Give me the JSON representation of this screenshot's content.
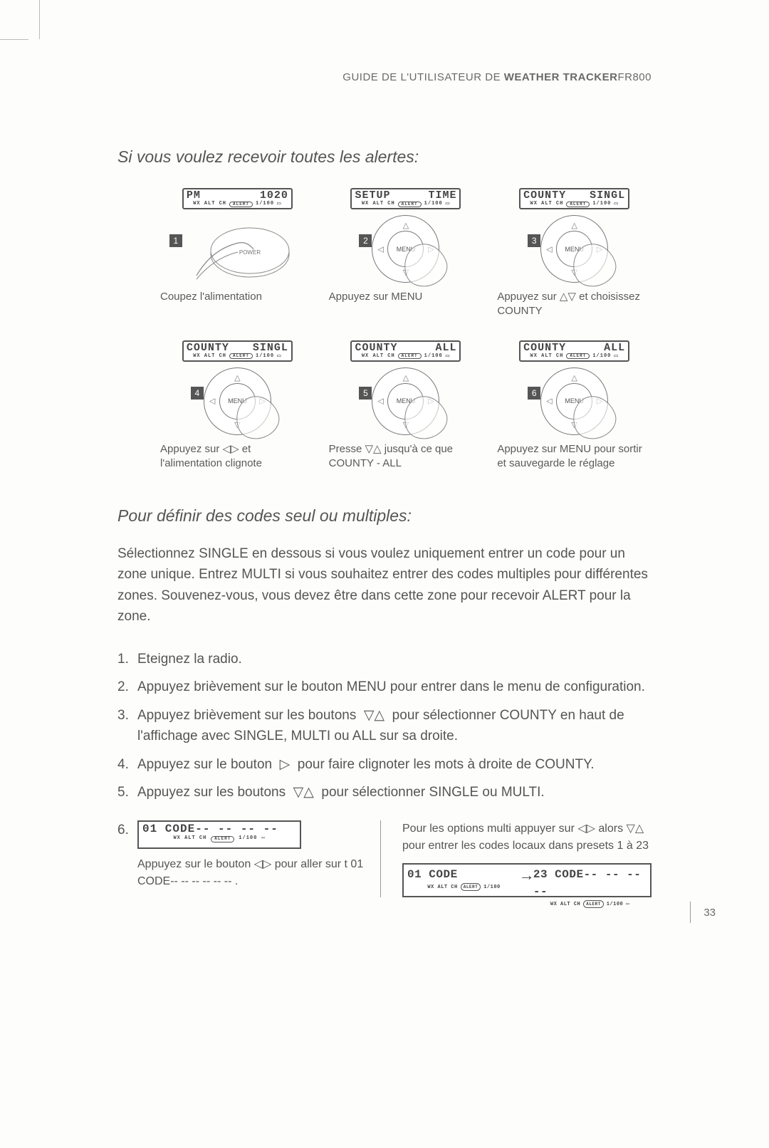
{
  "runhead": {
    "prefix": "GUIDE DE L'UTILISATEUR DE ",
    "bold": "WEATHER TRACKER",
    "suffix": "FR800"
  },
  "page_number": "33",
  "section1": {
    "title": "Si vous voulez recevoir toutes les alertes:",
    "steps": [
      {
        "num": "1",
        "lcd_left": "PM",
        "lcd_right": "1020",
        "caption": "Coupez l'alimentation",
        "dial_label": "POWER",
        "show_power_hand": true
      },
      {
        "num": "2",
        "lcd_left": "SETUP",
        "lcd_right": "TIME",
        "caption": "Appuyez sur MENU",
        "dial_label": "MENU",
        "show_hand": true
      },
      {
        "num": "3",
        "lcd_left": "COUNTY",
        "lcd_right": "SINGL",
        "caption_html": "Appuyez sur △▽ et choisissez COUNTY",
        "dial_label": "MENU",
        "show_hand": true
      },
      {
        "num": "4",
        "lcd_left": "COUNTY",
        "lcd_right": "SINGL",
        "caption_html": "Appuyez sur ◁▷ et l'alimentation clignote",
        "dial_label": "MENU",
        "show_hand": true
      },
      {
        "num": "5",
        "lcd_left": "COUNTY",
        "lcd_right": "ALL",
        "caption_html": "Presse ▽△ jusqu'à ce que COUNTY - ALL",
        "dial_label": "MENU",
        "show_hand": true
      },
      {
        "num": "6",
        "lcd_left": "COUNTY",
        "lcd_right": "ALL",
        "caption": "Appuyez sur MENU pour sortir et sauvegarde le réglage",
        "dial_label": "MENU",
        "show_hand": true
      }
    ]
  },
  "section2": {
    "title": "Pour définir des codes seul ou multiples:",
    "intro": "Sélectionnez SINGLE en dessous si vous voulez uniquement entrer un code pour un zone unique. Entrez MULTI si vous souhaitez entrer des codes multiples pour différentes zones. Souvenez-vous, vous devez être dans cette zone pour recevoir ALERT pour la zone.",
    "list": [
      {
        "n": "1.",
        "t": "Eteignez la radio."
      },
      {
        "n": "2.",
        "t": "Appuyez brièvement sur le bouton MENU pour entrer dans le menu de configuration."
      },
      {
        "n": "3.",
        "t_html": "Appuyez brièvement sur les boutons&nbsp;&nbsp;▽△&nbsp;&nbsp;pour sélectionner COUNTY en haut de l'affichage avec SINGLE, MULTI ou ALL sur sa droite."
      },
      {
        "n": "4.",
        "t_html": "Appuyez sur le bouton&nbsp;&nbsp;▷&nbsp;&nbsp;pour faire clignoter les mots à droite de COUNTY."
      },
      {
        "n": "5.",
        "t_html": "Appuyez sur les boutons&nbsp;&nbsp;▽△&nbsp;&nbsp;pour sélectionner SINGLE ou MULTI."
      }
    ],
    "left_box": {
      "n": "6.",
      "lcd": "01 CODE-- -- -- --",
      "caption_html": "Appuyez sur le bouton&nbsp;◁▷&nbsp;pour aller sur t 01 CODE-- -- -- -- -- -- ."
    },
    "right_box": {
      "text_html": "Pour les options multi appuyer sur&nbsp;◁▷ alors ▽△ pour entrer les codes locaux dans presets 1 à 23",
      "lcd_left": "01 CODE",
      "lcd_right": "23 CODE-- -- -- --"
    }
  },
  "lcd_common": {
    "alert": "ALERT",
    "batt": "▭"
  }
}
